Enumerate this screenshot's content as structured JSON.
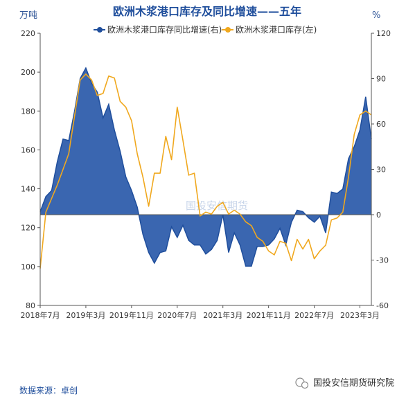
{
  "chart_data": {
    "type": "area",
    "title": "欧洲木浆港口库存及同比增速——五年",
    "left_unit": "万吨",
    "right_unit": "%",
    "left_axis": {
      "min": 80,
      "max": 220,
      "step": 20
    },
    "right_axis": {
      "min": -60,
      "max": 120,
      "step": 30
    },
    "x_range": [
      "2018-07",
      "2023-05"
    ],
    "x_tick_labels": [
      "2018年7月",
      "2019年3月",
      "2019年11月",
      "2020年7月",
      "2021年3月",
      "2021年11月",
      "2022年7月",
      "2023年3月"
    ],
    "x_tick_months": [
      "2018-07",
      "2019-03",
      "2019-11",
      "2020-07",
      "2021-03",
      "2021-11",
      "2022-07",
      "2023-03"
    ],
    "series": [
      {
        "name": "欧洲木浆港口库存同比增速(右)",
        "axis": "right",
        "style": "area",
        "color": "#3a66b0",
        "x": [
          "2018-07",
          "2018-08",
          "2018-09",
          "2018-10",
          "2018-11",
          "2018-12",
          "2019-01",
          "2019-02",
          "2019-03",
          "2019-04",
          "2019-05",
          "2019-06",
          "2019-07",
          "2019-08",
          "2019-09",
          "2019-10",
          "2019-11",
          "2019-12",
          "2020-01",
          "2020-02",
          "2020-03",
          "2020-04",
          "2020-05",
          "2020-06",
          "2020-07",
          "2020-08",
          "2020-09",
          "2020-10",
          "2020-11",
          "2020-12",
          "2021-01",
          "2021-02",
          "2021-03",
          "2021-04",
          "2021-05",
          "2021-06",
          "2021-07",
          "2021-08",
          "2021-09",
          "2021-10",
          "2021-11",
          "2021-12",
          "2022-01",
          "2022-02",
          "2022-03",
          "2022-04",
          "2022-05",
          "2022-06",
          "2022-07",
          "2022-08",
          "2022-09",
          "2022-10",
          "2022-11",
          "2022-12",
          "2023-01",
          "2023-02",
          "2023-03",
          "2023-04",
          "2023-05"
        ],
        "values": [
          2,
          12,
          16,
          35,
          50,
          49,
          68,
          90,
          97,
          87,
          81,
          64,
          73,
          56,
          42,
          25,
          16,
          5,
          -13,
          -25,
          -32,
          -25,
          -24,
          -8,
          -15,
          -7,
          -17,
          -20,
          -20,
          -26,
          -23,
          -17,
          0,
          -25,
          -12,
          -20,
          -34,
          -34,
          -21,
          -21,
          -20,
          -16,
          -9,
          -20,
          -5,
          3,
          2,
          -2,
          -5,
          -1,
          -12,
          15,
          14,
          17,
          37,
          45,
          56,
          78,
          50
        ]
      },
      {
        "name": "欧洲木浆港口库存(左)",
        "axis": "left",
        "style": "line",
        "color": "#f0a81e",
        "x": [
          "2018-07",
          "2018-08",
          "2018-09",
          "2018-10",
          "2018-11",
          "2018-12",
          "2019-01",
          "2019-02",
          "2019-03",
          "2019-04",
          "2019-05",
          "2019-06",
          "2019-07",
          "2019-08",
          "2019-09",
          "2019-10",
          "2019-11",
          "2019-12",
          "2020-01",
          "2020-02",
          "2020-03",
          "2020-04",
          "2020-05",
          "2020-06",
          "2020-07",
          "2020-08",
          "2020-09",
          "2020-10",
          "2020-11",
          "2020-12",
          "2021-01",
          "2021-02",
          "2021-03",
          "2021-04",
          "2021-05",
          "2021-06",
          "2021-07",
          "2021-08",
          "2021-09",
          "2021-10",
          "2021-11",
          "2021-12",
          "2022-01",
          "2022-02",
          "2022-03",
          "2022-04",
          "2022-05",
          "2022-06",
          "2022-07",
          "2022-08",
          "2022-09",
          "2022-10",
          "2022-11",
          "2022-12",
          "2023-01",
          "2023-02",
          "2023-03",
          "2023-04",
          "2023-05"
        ],
        "values": [
          99,
          128,
          135,
          142,
          150,
          158,
          177,
          196,
          199,
          196,
          188,
          189,
          198,
          197,
          185,
          182,
          175,
          158,
          146,
          131,
          148,
          148,
          167,
          155,
          182,
          165,
          147,
          148,
          126,
          128,
          127,
          131,
          133,
          127,
          129,
          127,
          123,
          121,
          115,
          113,
          108,
          106,
          113,
          112,
          103,
          114,
          109,
          114,
          104,
          108,
          111,
          124,
          125,
          128,
          146,
          168,
          178,
          180,
          178
        ]
      }
    ],
    "watermark": "国投安信期货",
    "source_text": "数据来源：卓创",
    "brand_text": "国投安信期货研究院"
  }
}
